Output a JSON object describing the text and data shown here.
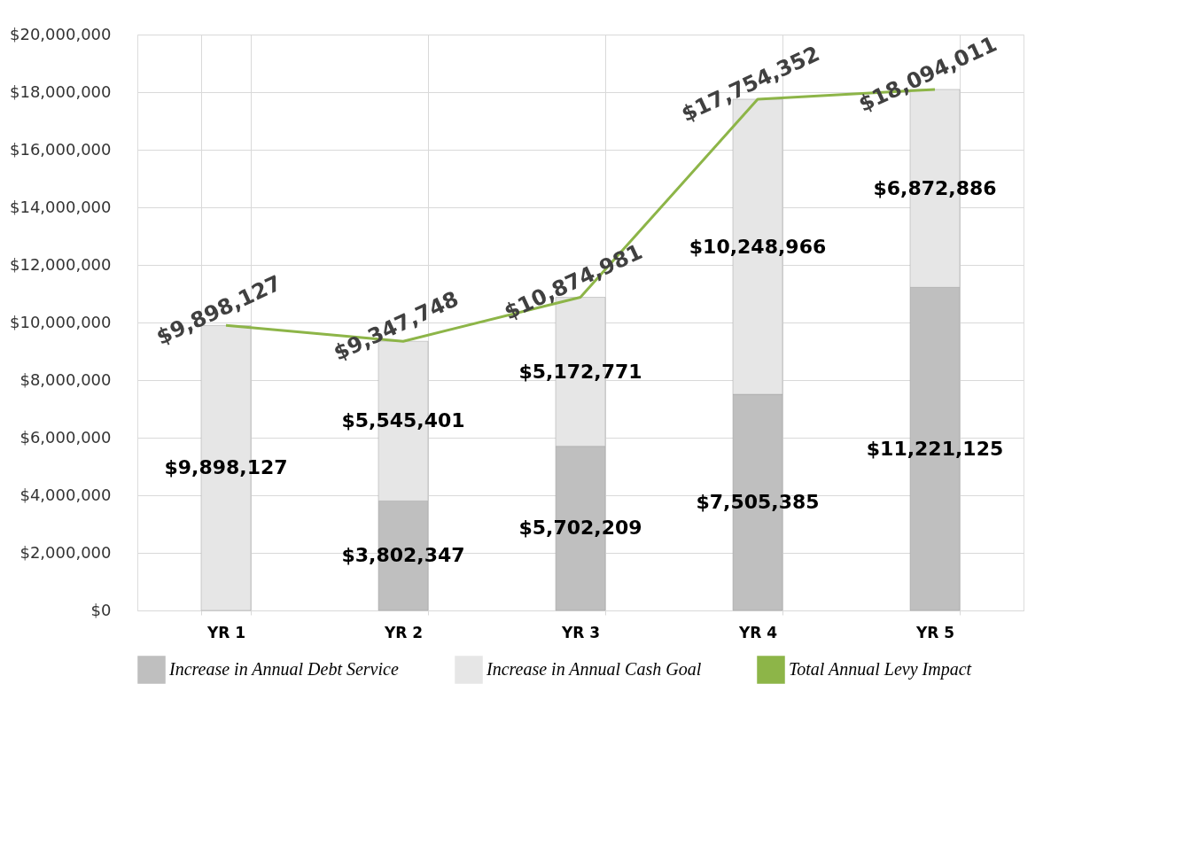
{
  "chart_data": {
    "type": "bar",
    "stacked": true,
    "categories": [
      "YR 1",
      "YR 2",
      "YR 3",
      "YR 4",
      "YR 5"
    ],
    "series": [
      {
        "name": "Increase in Annual Debt Service",
        "color": "#bfbfbf",
        "values": [
          null,
          3802347,
          5702209,
          7505385,
          11221125
        ],
        "value_labels": [
          null,
          "$3,802,347",
          "$5,702,209",
          "$7,505,385",
          "$11,221,125"
        ]
      },
      {
        "name": "Increase in Annual Cash Goal",
        "color": "#e6e6e6",
        "values": [
          9898127,
          5545401,
          5172771,
          10248966,
          6872886
        ],
        "value_labels": [
          "$9,898,127",
          "$5,545,401",
          "$5,172,771",
          "$10,248,966",
          "$6,872,886"
        ]
      },
      {
        "name": "Total Annual Levy Impact",
        "color": "#8db548",
        "type": "line",
        "values": [
          9898127,
          9347748,
          10874981,
          17754352,
          18094011
        ],
        "value_labels": [
          "$9,898,127",
          "$9,347,748",
          "$10,874,981",
          "$17,754,352",
          "$18,094,011"
        ]
      }
    ],
    "ylim": [
      0,
      20000000
    ],
    "yticks": [
      {
        "value": 0,
        "label": "$0"
      },
      {
        "value": 2000000,
        "label": "$2,000,000"
      },
      {
        "value": 4000000,
        "label": "$4,000,000"
      },
      {
        "value": 6000000,
        "label": "$6,000,000"
      },
      {
        "value": 8000000,
        "label": "$8,000,000"
      },
      {
        "value": 10000000,
        "label": "$10,000,000"
      },
      {
        "value": 12000000,
        "label": "$12,000,000"
      },
      {
        "value": 14000000,
        "label": "$14,000,000"
      },
      {
        "value": 16000000,
        "label": "$16,000,000"
      },
      {
        "value": 18000000,
        "label": "$18,000,000"
      },
      {
        "value": 20000000,
        "label": "$20,000,000"
      }
    ],
    "grid": true,
    "legend": "bottom"
  }
}
